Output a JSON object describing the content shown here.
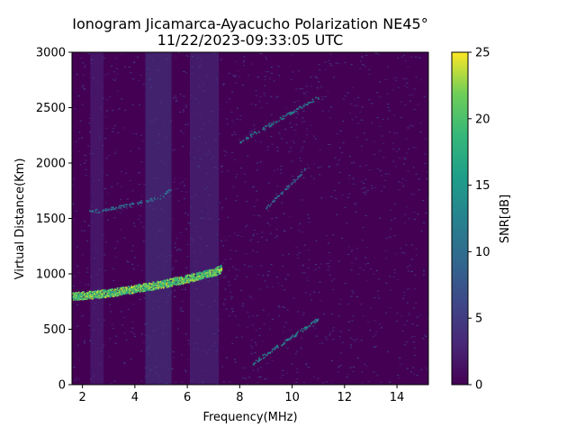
{
  "chart_data": {
    "type": "heatmap",
    "title": "Ionogram Jicamarca-Ayacucho Polarization NE45°",
    "subtitle": "11/22/2023-09:33:05 UTC",
    "xlabel": "Frequency(MHz)",
    "ylabel": "Virtual Distance(Km)",
    "xlim": [
      1.6,
      15.2
    ],
    "ylim": [
      0,
      3000
    ],
    "x_ticks": [
      "2",
      "4",
      "6",
      "8",
      "10",
      "12",
      "14"
    ],
    "y_ticks": [
      "0",
      "500",
      "1000",
      "1500",
      "2000",
      "2500",
      "3000"
    ],
    "colorbar": {
      "label": "SNR[dB]",
      "range": [
        0,
        25
      ],
      "ticks": [
        "0",
        "5",
        "10",
        "15",
        "20",
        "25"
      ],
      "colormap": "viridis"
    },
    "traces": [
      {
        "mode": "F-layer echo",
        "points": [
          [
            1.6,
            800
          ],
          [
            3,
            830
          ],
          [
            4,
            870
          ],
          [
            5,
            910
          ],
          [
            6,
            960
          ],
          [
            7,
            1020
          ],
          [
            7.3,
            1050
          ]
        ],
        "snr": 25
      },
      {
        "mode": "second-hop echo",
        "points": [
          [
            2.2,
            1560
          ],
          [
            3,
            1590
          ],
          [
            4,
            1640
          ],
          [
            5,
            1700
          ],
          [
            5.4,
            1780
          ]
        ],
        "snr": 12
      },
      {
        "mode": "diagonal interference",
        "points": [
          [
            8.5,
            200
          ],
          [
            11,
            600
          ]
        ],
        "snr": 15
      },
      {
        "mode": "diagonal interference",
        "points": [
          [
            8,
            2200
          ],
          [
            11,
            2600
          ]
        ],
        "snr": 15
      },
      {
        "mode": "diagonal interference",
        "points": [
          [
            9,
            1600
          ],
          [
            10.5,
            1950
          ]
        ],
        "snr": 12
      }
    ],
    "background_snr": 2,
    "band_noise": [
      [
        4.4,
        5.4,
        5
      ],
      [
        6.1,
        7.2,
        4
      ],
      [
        2.3,
        2.8,
        3
      ]
    ]
  }
}
